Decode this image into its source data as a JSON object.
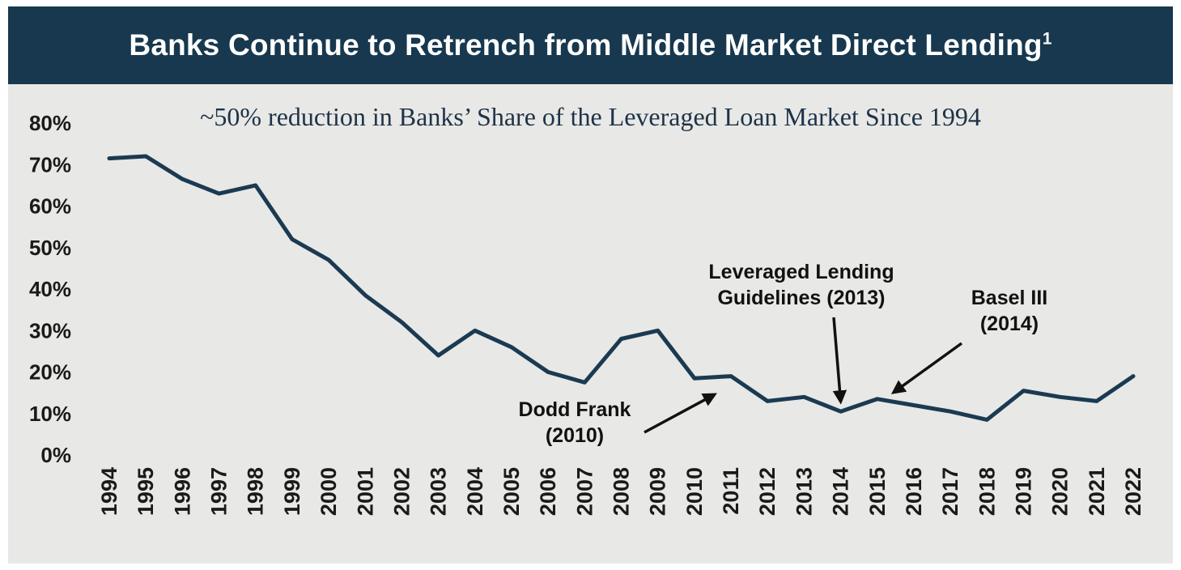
{
  "header": {
    "title": "Banks Continue to Retrench from Middle Market Direct Lending",
    "title_superscript": "1"
  },
  "colors": {
    "header_bg": "#17384e",
    "panel_bg": "#e8e8e6",
    "line": "#1b3a52",
    "axis_text": "#1a1a1a",
    "annotation_text": "#111111",
    "subtitle_text": "#1d3348"
  },
  "chart_data": {
    "type": "line",
    "title": "Banks Continue to Retrench from Middle Market Direct Lending¹",
    "subtitle": "~50% reduction in Banks’ Share of the Leveraged Loan Market Since 1994",
    "x": [
      1994,
      1995,
      1996,
      1997,
      1998,
      1999,
      2000,
      2001,
      2002,
      2003,
      2004,
      2005,
      2006,
      2007,
      2008,
      2009,
      2010,
      2011,
      2012,
      2013,
      2014,
      2015,
      2016,
      2017,
      2018,
      2019,
      2020,
      2021,
      2022
    ],
    "values": [
      71.5,
      72,
      66.5,
      63,
      65,
      52,
      47,
      38.5,
      32,
      24,
      30,
      26,
      20,
      17.5,
      28,
      30,
      18.5,
      19,
      13,
      14,
      10.5,
      13.5,
      12,
      10.5,
      8.5,
      15.5,
      14,
      13,
      19
    ],
    "ylim": [
      0,
      80
    ],
    "yticks": [
      0,
      10,
      20,
      30,
      40,
      50,
      60,
      70,
      80
    ],
    "ytick_suffix": "%",
    "grid": false,
    "legend": "none",
    "line_color": "#1b3a52",
    "annotations": [
      {
        "lines": [
          "Dodd Frank",
          "(2010)"
        ],
        "target_year": 2010,
        "target_value": 18.5
      },
      {
        "lines": [
          "Leveraged Lending",
          "Guidelines (2013)"
        ],
        "target_year": 2014,
        "target_value": 10.5
      },
      {
        "lines": [
          "Basel III",
          "(2014)"
        ],
        "target_year": 2015,
        "target_value": 13.5
      }
    ]
  }
}
